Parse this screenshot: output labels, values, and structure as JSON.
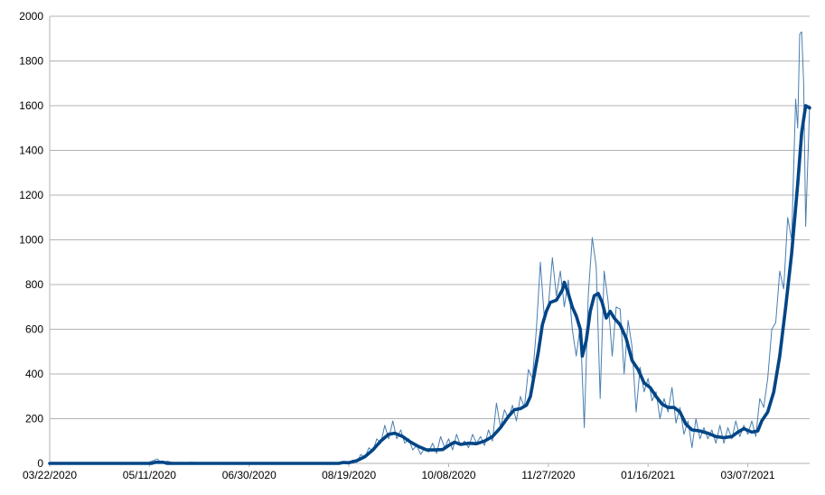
{
  "chart_data": {
    "type": "line",
    "title": "",
    "xlabel": "",
    "ylabel": "",
    "x_range": [
      "2020-03-22",
      "2021-04-07"
    ],
    "ylim": [
      0,
      2000
    ],
    "y_ticks": [
      0,
      200,
      400,
      600,
      800,
      1000,
      1200,
      1400,
      1600,
      1800,
      2000
    ],
    "x_ticks": [
      "03/22/2020",
      "05/11/2020",
      "06/30/2020",
      "08/19/2020",
      "10/08/2020",
      "11/27/2020",
      "01/16/2021",
      "03/07/2021"
    ],
    "grid": "horizontal",
    "legend": "none",
    "colors": {
      "daily": "#4a7eb0",
      "average": "#004586",
      "grid": "#b3b3b3",
      "axis": "#b3b3b3"
    },
    "series": [
      {
        "style": "thin",
        "points": [
          [
            "2020-03-22",
            0
          ],
          [
            "2020-03-24",
            3
          ],
          [
            "2020-03-27",
            0
          ],
          [
            "2020-04-20",
            0
          ],
          [
            "2020-04-26",
            0
          ],
          [
            "2020-05-10",
            3
          ],
          [
            "2020-05-15",
            20
          ],
          [
            "2020-05-17",
            0
          ],
          [
            "2020-05-20",
            10
          ],
          [
            "2020-05-24",
            0
          ],
          [
            "2020-06-01",
            5
          ],
          [
            "2020-06-10",
            0
          ],
          [
            "2020-07-15",
            0
          ],
          [
            "2020-08-10",
            0
          ],
          [
            "2020-08-14",
            5
          ],
          [
            "2020-08-16",
            0
          ],
          [
            "2020-08-19",
            0
          ],
          [
            "2020-08-21",
            15
          ],
          [
            "2020-08-23",
            5
          ],
          [
            "2020-08-25",
            40
          ],
          [
            "2020-08-27",
            25
          ],
          [
            "2020-08-29",
            70
          ],
          [
            "2020-08-31",
            55
          ],
          [
            "2020-09-02",
            110
          ],
          [
            "2020-09-04",
            90
          ],
          [
            "2020-09-06",
            170
          ],
          [
            "2020-09-08",
            110
          ],
          [
            "2020-09-10",
            190
          ],
          [
            "2020-09-12",
            110
          ],
          [
            "2020-09-14",
            150
          ],
          [
            "2020-09-16",
            90
          ],
          [
            "2020-09-18",
            110
          ],
          [
            "2020-09-20",
            60
          ],
          [
            "2020-09-22",
            80
          ],
          [
            "2020-09-24",
            40
          ],
          [
            "2020-09-26",
            70
          ],
          [
            "2020-09-28",
            50
          ],
          [
            "2020-09-30",
            90
          ],
          [
            "2020-10-02",
            45
          ],
          [
            "2020-10-04",
            120
          ],
          [
            "2020-10-06",
            70
          ],
          [
            "2020-10-08",
            110
          ],
          [
            "2020-10-10",
            60
          ],
          [
            "2020-10-12",
            130
          ],
          [
            "2020-10-14",
            80
          ],
          [
            "2020-10-16",
            100
          ],
          [
            "2020-10-18",
            70
          ],
          [
            "2020-10-20",
            130
          ],
          [
            "2020-10-22",
            90
          ],
          [
            "2020-10-24",
            120
          ],
          [
            "2020-10-26",
            80
          ],
          [
            "2020-10-28",
            150
          ],
          [
            "2020-10-30",
            100
          ],
          [
            "2020-11-01",
            270
          ],
          [
            "2020-11-03",
            160
          ],
          [
            "2020-11-05",
            240
          ],
          [
            "2020-11-07",
            200
          ],
          [
            "2020-11-09",
            260
          ],
          [
            "2020-11-11",
            190
          ],
          [
            "2020-11-13",
            300
          ],
          [
            "2020-11-15",
            250
          ],
          [
            "2020-11-17",
            420
          ],
          [
            "2020-11-19",
            380
          ],
          [
            "2020-11-21",
            600
          ],
          [
            "2020-11-23",
            900
          ],
          [
            "2020-11-25",
            650
          ],
          [
            "2020-11-27",
            700
          ],
          [
            "2020-11-29",
            920
          ],
          [
            "2020-12-01",
            750
          ],
          [
            "2020-12-03",
            860
          ],
          [
            "2020-12-05",
            700
          ],
          [
            "2020-12-07",
            820
          ],
          [
            "2020-12-09",
            600
          ],
          [
            "2020-12-11",
            480
          ],
          [
            "2020-12-13",
            620
          ],
          [
            "2020-12-15",
            160
          ],
          [
            "2020-12-17",
            750
          ],
          [
            "2020-12-19",
            1010
          ],
          [
            "2020-12-21",
            880
          ],
          [
            "2020-12-23",
            290
          ],
          [
            "2020-12-25",
            860
          ],
          [
            "2020-12-27",
            720
          ],
          [
            "2020-12-29",
            480
          ],
          [
            "2020-12-31",
            700
          ],
          [
            "2021-01-02",
            690
          ],
          [
            "2021-01-04",
            400
          ],
          [
            "2021-01-06",
            640
          ],
          [
            "2021-01-08",
            520
          ],
          [
            "2021-01-10",
            230
          ],
          [
            "2021-01-12",
            430
          ],
          [
            "2021-01-14",
            320
          ],
          [
            "2021-01-16",
            380
          ],
          [
            "2021-01-18",
            280
          ],
          [
            "2021-01-20",
            320
          ],
          [
            "2021-01-22",
            200
          ],
          [
            "2021-01-24",
            290
          ],
          [
            "2021-01-26",
            230
          ],
          [
            "2021-01-28",
            340
          ],
          [
            "2021-01-30",
            180
          ],
          [
            "2021-02-01",
            250
          ],
          [
            "2021-02-03",
            130
          ],
          [
            "2021-02-05",
            190
          ],
          [
            "2021-02-07",
            70
          ],
          [
            "2021-02-09",
            200
          ],
          [
            "2021-02-11",
            110
          ],
          [
            "2021-02-13",
            160
          ],
          [
            "2021-02-15",
            110
          ],
          [
            "2021-02-17",
            150
          ],
          [
            "2021-02-19",
            90
          ],
          [
            "2021-02-21",
            170
          ],
          [
            "2021-02-23",
            90
          ],
          [
            "2021-02-25",
            160
          ],
          [
            "2021-02-27",
            110
          ],
          [
            "2021-03-01",
            190
          ],
          [
            "2021-03-03",
            120
          ],
          [
            "2021-03-05",
            170
          ],
          [
            "2021-03-07",
            130
          ],
          [
            "2021-03-09",
            190
          ],
          [
            "2021-03-11",
            120
          ],
          [
            "2021-03-13",
            290
          ],
          [
            "2021-03-15",
            250
          ],
          [
            "2021-03-17",
            380
          ],
          [
            "2021-03-19",
            600
          ],
          [
            "2021-03-21",
            630
          ],
          [
            "2021-03-23",
            860
          ],
          [
            "2021-03-25",
            780
          ],
          [
            "2021-03-27",
            1100
          ],
          [
            "2021-03-29",
            1000
          ],
          [
            "2021-03-31",
            1630
          ],
          [
            "2021-04-01",
            1500
          ],
          [
            "2021-04-02",
            1920
          ],
          [
            "2021-04-03",
            1930
          ],
          [
            "2021-04-04",
            1700
          ],
          [
            "2021-04-05",
            1060
          ],
          [
            "2021-04-07",
            1600
          ]
        ]
      },
      {
        "style": "thick",
        "points": [
          [
            "2020-03-22",
            0
          ],
          [
            "2020-05-12",
            0
          ],
          [
            "2020-05-14",
            5
          ],
          [
            "2020-05-18",
            5
          ],
          [
            "2020-05-20",
            0
          ],
          [
            "2020-08-14",
            0
          ],
          [
            "2020-08-16",
            4
          ],
          [
            "2020-08-19",
            3
          ],
          [
            "2020-08-23",
            12
          ],
          [
            "2020-08-27",
            30
          ],
          [
            "2020-08-31",
            60
          ],
          [
            "2020-09-04",
            100
          ],
          [
            "2020-09-08",
            130
          ],
          [
            "2020-09-11",
            135
          ],
          [
            "2020-09-15",
            120
          ],
          [
            "2020-09-19",
            95
          ],
          [
            "2020-09-23",
            75
          ],
          [
            "2020-09-27",
            60
          ],
          [
            "2020-10-01",
            60
          ],
          [
            "2020-10-05",
            62
          ],
          [
            "2020-10-08",
            80
          ],
          [
            "2020-10-11",
            95
          ],
          [
            "2020-10-14",
            85
          ],
          [
            "2020-10-18",
            90
          ],
          [
            "2020-10-22",
            88
          ],
          [
            "2020-10-26",
            100
          ],
          [
            "2020-10-30",
            120
          ],
          [
            "2020-11-03",
            160
          ],
          [
            "2020-11-07",
            210
          ],
          [
            "2020-11-10",
            240
          ],
          [
            "2020-11-13",
            245
          ],
          [
            "2020-11-16",
            260
          ],
          [
            "2020-11-18",
            300
          ],
          [
            "2020-11-20",
            400
          ],
          [
            "2020-11-22",
            500
          ],
          [
            "2020-11-24",
            620
          ],
          [
            "2020-11-26",
            680
          ],
          [
            "2020-11-28",
            720
          ],
          [
            "2020-12-01",
            730
          ],
          [
            "2020-12-04",
            775
          ],
          [
            "2020-12-05",
            810
          ],
          [
            "2020-12-07",
            760
          ],
          [
            "2020-12-09",
            700
          ],
          [
            "2020-12-11",
            660
          ],
          [
            "2020-12-13",
            600
          ],
          [
            "2020-12-14",
            480
          ],
          [
            "2020-12-16",
            550
          ],
          [
            "2020-12-18",
            680
          ],
          [
            "2020-12-20",
            750
          ],
          [
            "2020-12-22",
            760
          ],
          [
            "2020-12-24",
            720
          ],
          [
            "2020-12-26",
            650
          ],
          [
            "2020-12-28",
            680
          ],
          [
            "2020-12-30",
            650
          ],
          [
            "2021-01-02",
            620
          ],
          [
            "2021-01-05",
            560
          ],
          [
            "2021-01-08",
            460
          ],
          [
            "2021-01-11",
            420
          ],
          [
            "2021-01-14",
            360
          ],
          [
            "2021-01-17",
            340
          ],
          [
            "2021-01-20",
            300
          ],
          [
            "2021-01-23",
            265
          ],
          [
            "2021-01-26",
            250
          ],
          [
            "2021-01-29",
            250
          ],
          [
            "2021-02-01",
            230
          ],
          [
            "2021-02-04",
            175
          ],
          [
            "2021-02-07",
            150
          ],
          [
            "2021-02-11",
            145
          ],
          [
            "2021-02-15",
            135
          ],
          [
            "2021-02-19",
            120
          ],
          [
            "2021-02-23",
            115
          ],
          [
            "2021-02-27",
            120
          ],
          [
            "2021-03-02",
            140
          ],
          [
            "2021-03-05",
            155
          ],
          [
            "2021-03-09",
            140
          ],
          [
            "2021-03-12",
            145
          ],
          [
            "2021-03-14",
            190
          ],
          [
            "2021-03-17",
            230
          ],
          [
            "2021-03-20",
            320
          ],
          [
            "2021-03-23",
            480
          ],
          [
            "2021-03-26",
            700
          ],
          [
            "2021-03-29",
            940
          ],
          [
            "2021-04-01",
            1250
          ],
          [
            "2021-04-03",
            1480
          ],
          [
            "2021-04-05",
            1600
          ],
          [
            "2021-04-07",
            1590
          ]
        ]
      }
    ]
  }
}
